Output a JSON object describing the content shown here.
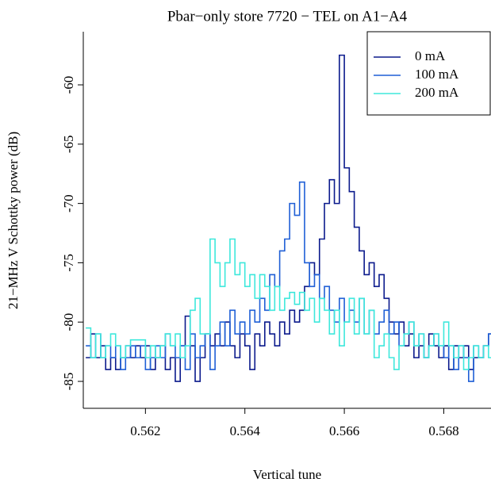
{
  "chart_data": {
    "type": "line",
    "title": "Pbar−only store 7720 − TEL on A1−A4",
    "x_label": "Vertical tune",
    "y_label": "21−MHz V Schottky power (dB)",
    "x": [
      0.5608,
      0.5609,
      0.561,
      0.5611,
      0.5612,
      0.5613,
      0.5614,
      0.5615,
      0.5616,
      0.5617,
      0.5618,
      0.5619,
      0.562,
      0.5621,
      0.5622,
      0.5623,
      0.5624,
      0.5625,
      0.5626,
      0.5627,
      0.5628,
      0.5629,
      0.563,
      0.5631,
      0.5632,
      0.5633,
      0.5634,
      0.5635,
      0.5636,
      0.5637,
      0.5638,
      0.5639,
      0.564,
      0.5641,
      0.5642,
      0.5643,
      0.5644,
      0.5645,
      0.5646,
      0.5647,
      0.5648,
      0.5649,
      0.565,
      0.5651,
      0.5652,
      0.5653,
      0.5654,
      0.5655,
      0.5656,
      0.5657,
      0.5658,
      0.5659,
      0.566,
      0.5661,
      0.5662,
      0.5663,
      0.5664,
      0.5665,
      0.5666,
      0.5667,
      0.5668,
      0.5669,
      0.567,
      0.5671,
      0.5672,
      0.5673,
      0.5674,
      0.5675,
      0.5676,
      0.5677,
      0.5678,
      0.5679,
      0.568,
      0.5681,
      0.5682,
      0.5683,
      0.5684,
      0.5685,
      0.5686,
      0.5687,
      0.5688,
      0.5689,
      0.569
    ],
    "series": [
      {
        "name": "0 mA",
        "color": "#0b1a8c",
        "values": [
          -83,
          -81,
          -83,
          -82,
          -84,
          -83,
          -84,
          -83,
          -82,
          -83,
          -82,
          -83,
          -82,
          -84,
          -83,
          -82,
          -84,
          -83,
          -85,
          -82,
          -79.5,
          -82,
          -85,
          -83,
          -81,
          -82,
          -81,
          -82,
          -80,
          -82,
          -83,
          -81,
          -82,
          -84,
          -81,
          -82,
          -80,
          -81,
          -82,
          -80,
          -81,
          -79,
          -80,
          -79,
          -77,
          -75,
          -76,
          -73,
          -70,
          -68,
          -70,
          -57.5,
          -67,
          -69,
          -72,
          -74,
          -76,
          -75,
          -77,
          -76,
          -78,
          -80,
          -81,
          -80,
          -82,
          -81,
          -83,
          -82,
          -83,
          -81,
          -82,
          -83,
          -82,
          -84,
          -82,
          -83,
          -82,
          -84,
          -83,
          -83,
          -82,
          -81,
          -83
        ]
      },
      {
        "name": "100 mA",
        "color": "#1f5fd6",
        "values": [
          -82,
          -83,
          -81,
          -83,
          -82,
          -83,
          -82,
          -84,
          -83,
          -82,
          -83,
          -82,
          -84,
          -83,
          -82,
          -83,
          -81,
          -82,
          -83,
          -82,
          -84,
          -81,
          -83,
          -82,
          -81,
          -84,
          -82,
          -80,
          -82,
          -79,
          -81,
          -80,
          -81,
          -79,
          -80,
          -78,
          -79,
          -76,
          -77,
          -74,
          -73,
          -70,
          -71,
          -68.2,
          -75,
          -77,
          -76,
          -78,
          -77,
          -79,
          -80,
          -78,
          -80,
          -79,
          -80,
          -78,
          -81,
          -79,
          -81,
          -80,
          -79,
          -81,
          -80,
          -82,
          -81,
          -80,
          -82,
          -81,
          -83,
          -82,
          -81,
          -82,
          -83,
          -82,
          -84,
          -82,
          -83,
          -85,
          -82,
          -83,
          -82,
          -81,
          -82
        ]
      },
      {
        "name": "200 mA",
        "color": "#3ee8dc",
        "values": [
          -80.5,
          -83,
          -81,
          -83,
          -82,
          -81,
          -82,
          -83,
          -82,
          -81.5,
          -81.5,
          -81.5,
          -83,
          -82,
          -83,
          -82,
          -81,
          -82,
          -81,
          -83,
          -82,
          -79,
          -78,
          -81,
          -81,
          -73,
          -75,
          -77,
          -75,
          -73,
          -76,
          -75,
          -77,
          -76,
          -78,
          -76,
          -77,
          -79,
          -77,
          -79,
          -78,
          -77.5,
          -78.5,
          -77.5,
          -79,
          -78,
          -80,
          -78,
          -79,
          -81,
          -79,
          -82,
          -80,
          -78,
          -81,
          -78,
          -81,
          -79,
          -83,
          -82,
          -81,
          -83,
          -84,
          -82,
          -81,
          -80,
          -82,
          -81,
          -83,
          -82,
          -81,
          -82,
          -80,
          -82,
          -83,
          -82,
          -84,
          -83,
          -82,
          -83,
          -82,
          -83,
          -82
        ]
      }
    ],
    "xlim": [
      0.56075,
      0.56895
    ],
    "ylim": [
      -87.27,
      -55.52
    ],
    "xticks": [
      0.562,
      0.564,
      0.566,
      0.568
    ],
    "yticks": [
      -85,
      -80,
      -75,
      -70,
      -65,
      -60
    ],
    "step": true,
    "legend": "top-right"
  }
}
